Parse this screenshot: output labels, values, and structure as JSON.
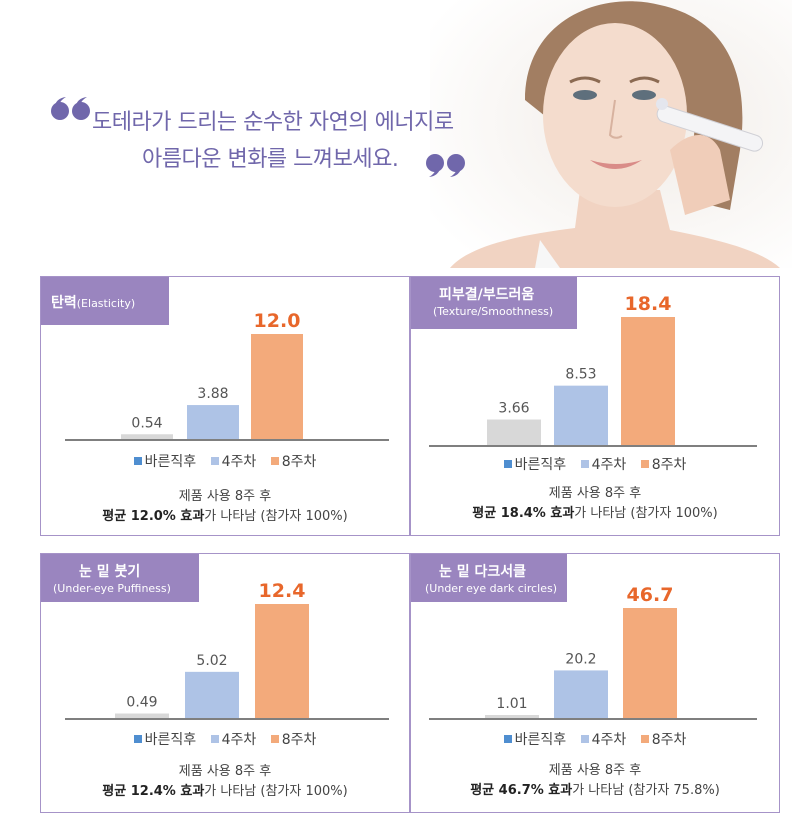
{
  "header": {
    "line1": "도테라가 드리는 순수한 자연의 에너지로",
    "line2": "아름다운 변화를 느껴보세요."
  },
  "colors": {
    "accent_purple": "#9a85bf",
    "headline": "#7067ab",
    "highlight_value": "#e8672b",
    "bar_immediate": "#d8d8d8",
    "bar_4weeks": "#aec3e6",
    "bar_8weeks": "#f3aa7b",
    "legend_immediate": "#4f8ed0",
    "legend_4weeks": "#aec3e6",
    "legend_8weeks": "#f3aa7b"
  },
  "legend": [
    "바른직후",
    "4주차",
    "8주차"
  ],
  "chart_data": [
    {
      "type": "bar",
      "title": "탄력",
      "subtitle": "(Elasticity)",
      "categories": [
        "바른직후",
        "4주차",
        "8주차"
      ],
      "values": [
        0.54,
        3.88,
        12.0
      ],
      "value_labels": [
        "0.54",
        "3.88",
        "12.0"
      ],
      "caption_line1": "제품 사용 8주 후",
      "caption_bold": "평균 12.0% 효과",
      "caption_rest": "가 나타남 (참가자 100%)"
    },
    {
      "type": "bar",
      "title": "피부결/부드러움",
      "subtitle": "(Texture/Smoothness)",
      "categories": [
        "바른직후",
        "4주차",
        "8주차"
      ],
      "values": [
        3.66,
        8.53,
        18.4
      ],
      "value_labels": [
        "3.66",
        "8.53",
        "18.4"
      ],
      "caption_line1": "제품 사용 8주 후",
      "caption_bold": "평균 18.4% 효과",
      "caption_rest": "가 나타남 (참가자 100%)"
    },
    {
      "type": "bar",
      "title": "눈 밑 붓기",
      "subtitle": "(Under-eye Puffiness)",
      "categories": [
        "바른직후",
        "4주차",
        "8주차"
      ],
      "values": [
        0.49,
        5.02,
        12.4
      ],
      "value_labels": [
        "0.49",
        "5.02",
        "12.4"
      ],
      "caption_line1": "제품 사용 8주 후",
      "caption_bold": "평균 12.4% 효과",
      "caption_rest": "가 나타남 (참가자 100%)"
    },
    {
      "type": "bar",
      "title": "눈 밑 다크서클",
      "subtitle": "(Under eye dark circles)",
      "categories": [
        "바른직후",
        "4주차",
        "8주차"
      ],
      "values": [
        1.01,
        20.2,
        46.7
      ],
      "value_labels": [
        "1.01",
        "20.2",
        "46.7"
      ],
      "caption_line1": "제품 사용 8주 후",
      "caption_bold": "평균 46.7% 효과",
      "caption_rest": "가 나타남 (참가자 75.8%)"
    }
  ]
}
